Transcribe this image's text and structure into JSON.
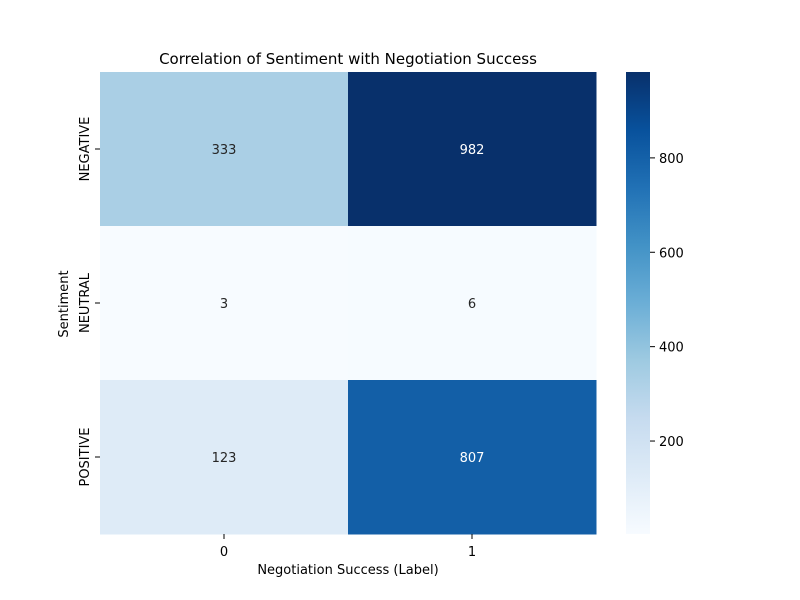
{
  "chart_data": {
    "type": "heatmap",
    "title": "Correlation of Sentiment with Negotiation Success",
    "xlabel": "Negotiation Success (Label)",
    "ylabel": "Sentiment",
    "x_categories": [
      "0",
      "1"
    ],
    "y_categories": [
      "NEGATIVE",
      "NEUTRAL",
      "POSITIVE"
    ],
    "values": [
      [
        333,
        982
      ],
      [
        3,
        6
      ],
      [
        123,
        807
      ]
    ],
    "colormap": "Blues",
    "colorbar": {
      "min": 3,
      "max": 982,
      "ticks": [
        200,
        400,
        600,
        800
      ]
    },
    "grid": false
  }
}
